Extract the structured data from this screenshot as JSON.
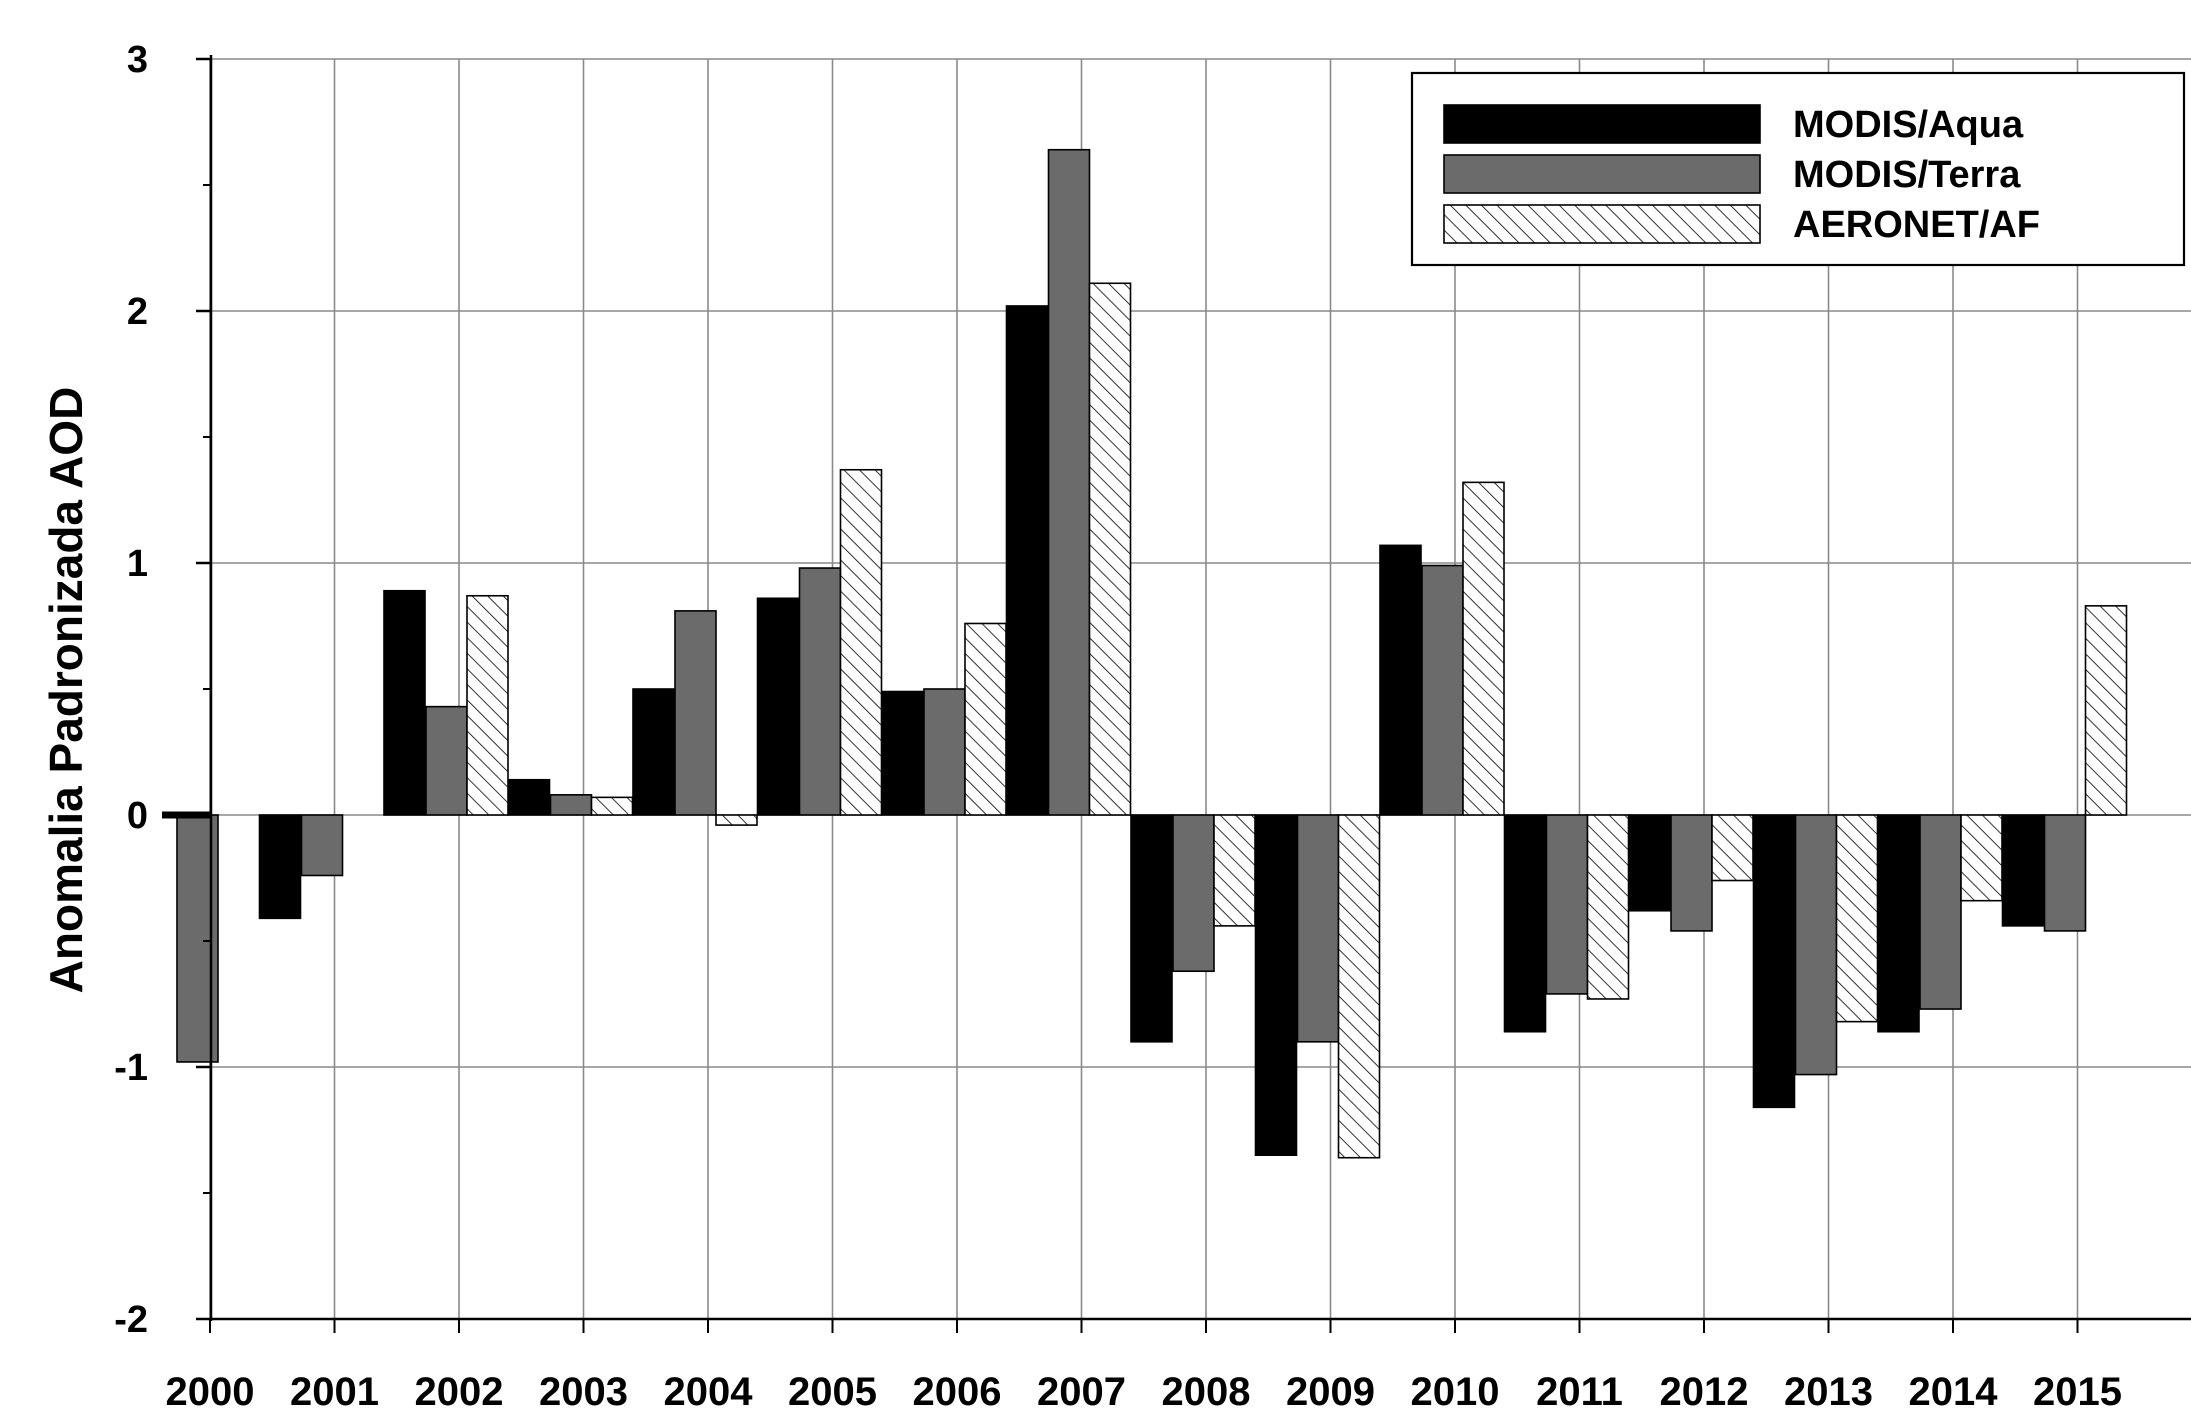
{
  "chart_data": {
    "type": "bar",
    "title": "",
    "xlabel": "",
    "ylabel": "Anomalia Padronizada AOD",
    "ylim": [
      -2,
      3
    ],
    "yticks": [
      "3",
      "2",
      "1",
      "0",
      "-1",
      "-2"
    ],
    "grid": true,
    "legend_position": "top-right",
    "categories": [
      "2000",
      "2001",
      "2002",
      "2003",
      "2004",
      "2005",
      "2006",
      "2007",
      "2008",
      "2009",
      "2010",
      "2011",
      "2012",
      "2013",
      "2014",
      "2015"
    ],
    "series": [
      {
        "name": "MODIS/Aqua",
        "color": "#000000",
        "pattern": "solid",
        "values": [
          null,
          -0.41,
          0.89,
          0.14,
          0.5,
          0.86,
          0.49,
          2.02,
          -0.9,
          -1.35,
          1.07,
          -0.86,
          -0.38,
          -1.16,
          -0.86,
          -0.44
        ]
      },
      {
        "name": "MODIS/Terra",
        "color": "#6b6b6b",
        "pattern": "solid",
        "values": [
          -0.98,
          -0.24,
          0.43,
          0.08,
          0.81,
          0.98,
          0.5,
          2.64,
          -0.62,
          -0.9,
          0.99,
          -0.71,
          -0.46,
          -1.03,
          -0.77,
          -0.46
        ]
      },
      {
        "name": "AERONET/AF",
        "color": "#ffffff",
        "pattern": "hatched",
        "values": [
          null,
          null,
          0.87,
          0.07,
          -0.04,
          1.37,
          0.76,
          2.11,
          -0.44,
          -1.36,
          1.32,
          -0.73,
          -0.26,
          -0.82,
          -0.34,
          0.83
        ]
      }
    ]
  }
}
